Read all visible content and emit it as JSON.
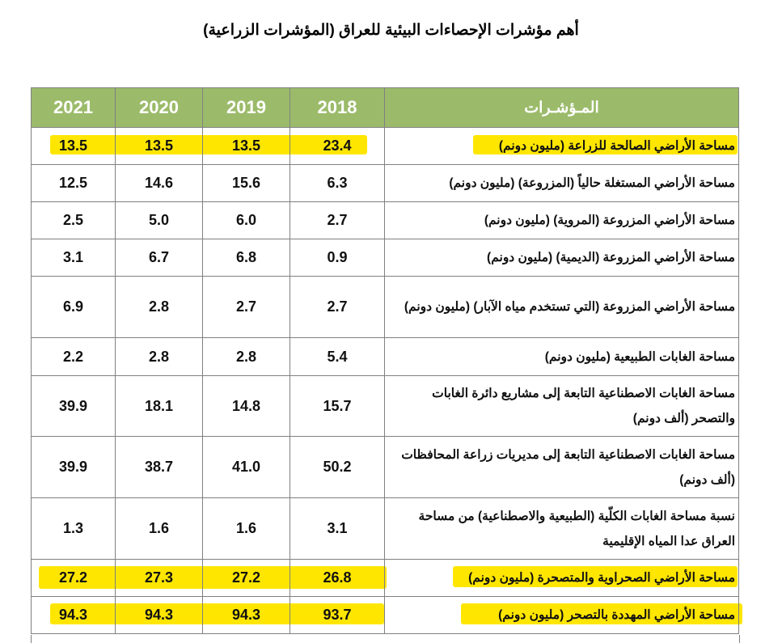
{
  "title": "أهم مؤشرات الإحصاءات البيئية للعراق (المؤشرات الزراعية)",
  "colors": {
    "header_bg": "#9bbb6a",
    "highlight": "#ffe600"
  },
  "table": {
    "headers": {
      "indicator": "المـؤشـرات",
      "years": [
        "2018",
        "2019",
        "2020",
        "2021"
      ]
    },
    "rows": [
      {
        "label": "مساحة الأراضي الصالحة للزراعة  (مليون دونم)",
        "values": [
          "23.4",
          "13.5",
          "13.5",
          "13.5"
        ],
        "highlighted": true
      },
      {
        "label": "مساحة الأراضي المستغلة حالياً (المزروعة) (مليون دونم)",
        "values": [
          "6.3",
          "15.6",
          "14.6",
          "12.5"
        ],
        "highlighted": false
      },
      {
        "label": "مساحة الأراضي المزروعة (المروية) (مليون دونم)",
        "values": [
          "2.7",
          "6.0",
          "5.0",
          "2.5"
        ],
        "highlighted": false
      },
      {
        "label": "مساحة الأراضي المزروعة (الديمية) (مليون دونم)",
        "values": [
          "0.9",
          "6.8",
          "6.7",
          "3.1"
        ],
        "highlighted": false
      },
      {
        "label": "مساحة الأراضي المزروعة (التي تستخدم مياه الآبار) (مليون دونم)",
        "values": [
          "2.7",
          "2.7",
          "2.8",
          "6.9"
        ],
        "highlighted": false
      },
      {
        "label": "مساحة الغابات الطبيعية (مليون دونم)",
        "values": [
          "5.4",
          "2.8",
          "2.8",
          "2.2"
        ],
        "highlighted": false
      },
      {
        "label": "مساحة الغابات الاصطناعية التابعة إلى مشاريع دائرة الغابات والتصحر  (ألف دونم)",
        "values": [
          "15.7",
          "14.8",
          "18.1",
          "39.9"
        ],
        "highlighted": false
      },
      {
        "label": "مساحة الغابات الاصطناعية التابعة إلى مديريات زراعة المحافظات (ألف دونم)",
        "values": [
          "50.2",
          "41.0",
          "38.7",
          "39.9"
        ],
        "highlighted": false
      },
      {
        "label": "نسبة مساحة الغابات الكلّية (الطبيعية والاصطناعية) من مساحة العراق عدا المياه الإقليمية",
        "values": [
          "3.1",
          "1.6",
          "1.6",
          "1.3"
        ],
        "highlighted": false
      },
      {
        "label": "مساحة الأراضي الصحراوية والمتصحرة (مليون دونم)",
        "values": [
          "26.8",
          "27.2",
          "27.3",
          "27.2"
        ],
        "highlighted": true
      },
      {
        "label": "مساحة الأراضي المهددة بالتصحر (مليون دونم)",
        "values": [
          "93.7",
          "94.3",
          "94.3",
          "94.3"
        ],
        "highlighted": true
      }
    ]
  }
}
